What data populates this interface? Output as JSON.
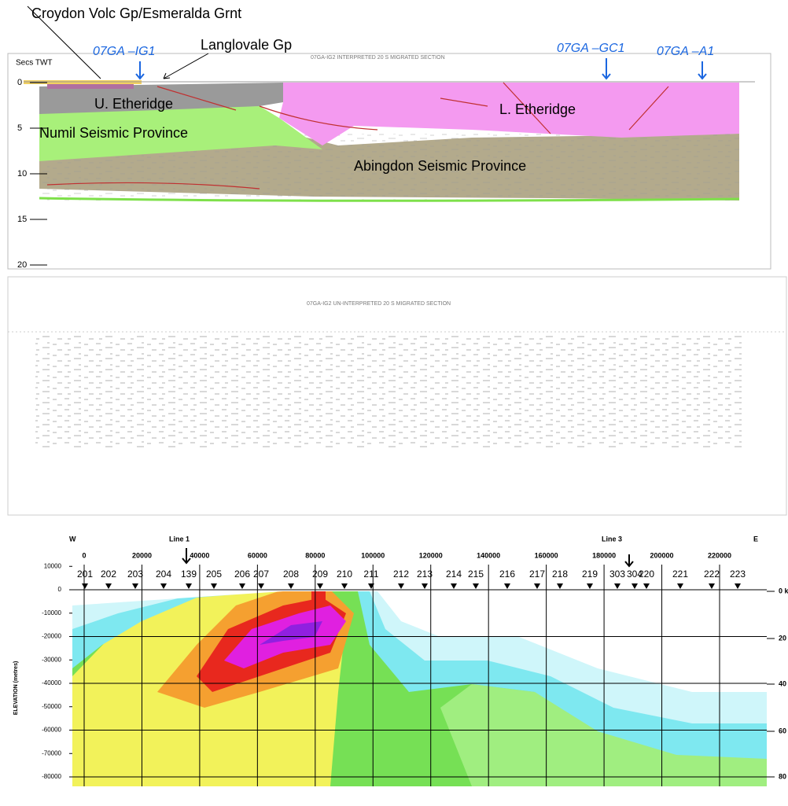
{
  "annotations": {
    "croydon": "Croydon Volc Gp/Esmeralda Grnt",
    "langlovale": "Langlovale Gp"
  },
  "section1": {
    "title": "07GA-IG2 INTERPRETED 20 S MIGRATED SECTION",
    "axis_label": "Secs TWT",
    "yticks": [
      0,
      5,
      10,
      15,
      20
    ],
    "wells": [
      "07GA –IG1",
      "07GA –GC1",
      "07GA –A1"
    ],
    "units": [
      "U. Etheridge",
      "L. Etheridge",
      "Numil Seismic Province",
      "Abingdon Seismic Province"
    ]
  },
  "section2": {
    "title": "07GA-IG2 UN-INTERPRETED 20 S MIGRATED SECTION"
  },
  "section3": {
    "west": "W",
    "east": "E",
    "lines": [
      "Line 1",
      "Line 3"
    ],
    "xticks": [
      0,
      20000,
      40000,
      60000,
      80000,
      100000,
      120000,
      140000,
      160000,
      180000,
      200000,
      220000
    ],
    "yticks": [
      10000,
      0,
      -10000,
      -20000,
      -30000,
      -40000,
      -50000,
      -60000,
      -70000,
      -80000
    ],
    "y_label": "ELEVATION (metres)",
    "stations": [
      "201",
      "202",
      "203",
      "204",
      "139",
      "205",
      "206",
      "207",
      "208",
      "209",
      "210",
      "211",
      "212",
      "213",
      "214",
      "215",
      "216",
      "217",
      "218",
      "219",
      "303",
      "304",
      "220",
      "221",
      "222",
      "223"
    ],
    "right_labels": [
      "0 k",
      "20",
      "40",
      "60",
      "80"
    ]
  }
}
